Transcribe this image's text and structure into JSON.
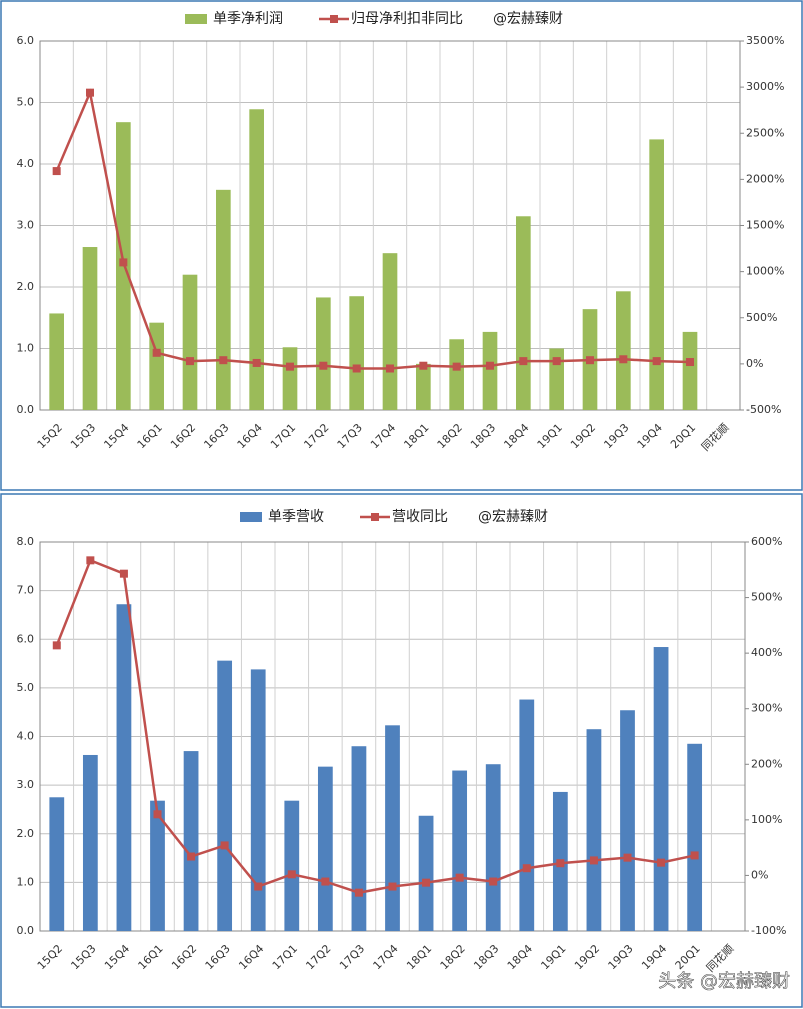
{
  "chart_data": [
    {
      "type": "bar",
      "legend_note": "@宏赫臻财",
      "categories": [
        "15Q2",
        "15Q3",
        "15Q4",
        "16Q1",
        "16Q2",
        "16Q3",
        "16Q4",
        "17Q1",
        "17Q2",
        "17Q3",
        "17Q4",
        "18Q1",
        "18Q2",
        "18Q3",
        "18Q4",
        "19Q1",
        "19Q2",
        "19Q3",
        "19Q4",
        "20Q1",
        "同花顺"
      ],
      "series": [
        {
          "name": "单季净利润",
          "type": "bar",
          "color": "#9bbb59",
          "values": [
            1.57,
            2.65,
            4.68,
            1.42,
            2.2,
            3.58,
            4.89,
            1.02,
            1.83,
            1.85,
            2.55,
            0.75,
            1.15,
            1.27,
            3.15,
            1.0,
            1.64,
            1.93,
            4.4,
            1.27,
            null
          ]
        },
        {
          "name": "归母净利扣非同比",
          "type": "line",
          "axis": "y2",
          "color": "#c0504d",
          "values": [
            2090,
            2940,
            1100,
            120,
            30,
            40,
            10,
            -30,
            -20,
            -50,
            -50,
            -20,
            -30,
            -20,
            30,
            30,
            40,
            50,
            30,
            20,
            null
          ]
        }
      ],
      "ylim": [
        0,
        6
      ],
      "yticks": [
        {
          "value": 0,
          "label": "0.0"
        },
        {
          "value": 1,
          "label": "1.0"
        },
        {
          "value": 2,
          "label": "2.0"
        },
        {
          "value": 3,
          "label": "3.0"
        },
        {
          "value": 4,
          "label": "4.0"
        },
        {
          "value": 5,
          "label": "5.0"
        },
        {
          "value": 6,
          "label": "6.0"
        }
      ],
      "y2lim": [
        -500,
        3500
      ],
      "y2ticks": [
        {
          "value": -500,
          "label": "-500%"
        },
        {
          "value": 0,
          "label": "0%"
        },
        {
          "value": 500,
          "label": "500%"
        },
        {
          "value": 1000,
          "label": "1000%"
        },
        {
          "value": 1500,
          "label": "1500%"
        },
        {
          "value": 2000,
          "label": "2000%"
        },
        {
          "value": 2500,
          "label": "2500%"
        },
        {
          "value": 3000,
          "label": "3000%"
        },
        {
          "value": 3500,
          "label": "3500%"
        }
      ],
      "grid": true
    },
    {
      "type": "bar",
      "legend_note": "@宏赫臻财",
      "categories": [
        "15Q2",
        "15Q3",
        "15Q4",
        "16Q1",
        "16Q2",
        "16Q3",
        "16Q4",
        "17Q1",
        "17Q2",
        "17Q3",
        "17Q4",
        "18Q1",
        "18Q2",
        "18Q3",
        "18Q4",
        "19Q1",
        "19Q2",
        "19Q3",
        "19Q4",
        "20Q1",
        "同花顺"
      ],
      "series": [
        {
          "name": "单季营收",
          "type": "bar",
          "color": "#4f81bd",
          "values": [
            2.75,
            3.62,
            6.72,
            2.68,
            3.7,
            5.56,
            5.38,
            2.68,
            3.38,
            3.8,
            4.23,
            2.37,
            3.3,
            3.43,
            4.76,
            2.86,
            4.15,
            4.54,
            5.84,
            3.85,
            null
          ]
        },
        {
          "name": "营收同比",
          "type": "line",
          "axis": "y2",
          "color": "#c0504d",
          "values": [
            414,
            567,
            543,
            110,
            34,
            54,
            -20,
            2,
            -11,
            -31,
            -20,
            -13,
            -4,
            -11,
            13,
            22,
            27,
            32,
            23,
            36,
            null
          ]
        }
      ],
      "ylim": [
        0,
        8
      ],
      "yticks": [
        {
          "value": 0,
          "label": "0.0"
        },
        {
          "value": 1,
          "label": "1.0"
        },
        {
          "value": 2,
          "label": "2.0"
        },
        {
          "value": 3,
          "label": "3.0"
        },
        {
          "value": 4,
          "label": "4.0"
        },
        {
          "value": 5,
          "label": "5.0"
        },
        {
          "value": 6,
          "label": "6.0"
        },
        {
          "value": 7,
          "label": "7.0"
        },
        {
          "value": 8,
          "label": "8.0"
        }
      ],
      "y2lim": [
        -100,
        600
      ],
      "y2ticks": [
        {
          "value": -100,
          "label": "-100%"
        },
        {
          "value": 0,
          "label": "0%"
        },
        {
          "value": 100,
          "label": "100%"
        },
        {
          "value": 200,
          "label": "200%"
        },
        {
          "value": 300,
          "label": "300%"
        },
        {
          "value": 400,
          "label": "400%"
        },
        {
          "value": 500,
          "label": "500%"
        },
        {
          "value": 600,
          "label": "600%"
        }
      ],
      "grid": true
    }
  ],
  "watermark": "头条 @宏赫臻财"
}
